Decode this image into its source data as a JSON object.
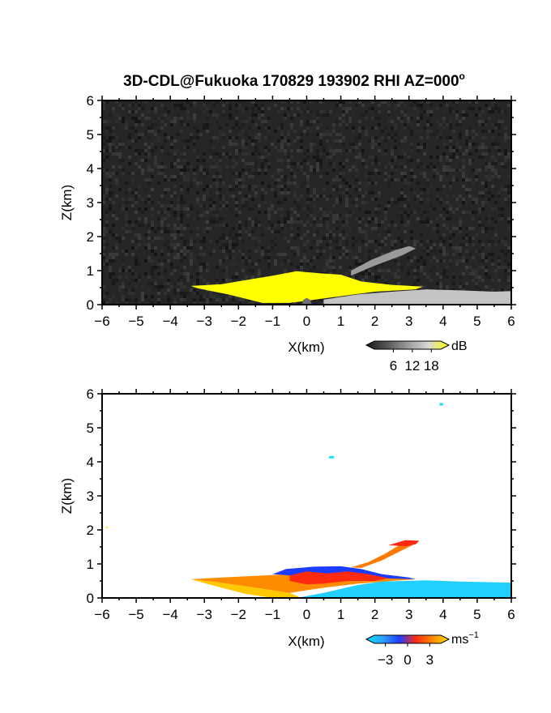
{
  "figure": {
    "title": "3D-CDL@Fukuoka 170829 193902 RHI AZ=000",
    "title_superscript": "o"
  },
  "chart_data": [
    {
      "type": "heatmap",
      "variable": "reflectivity",
      "xlabel": "X(km)",
      "ylabel": "Z(km)",
      "xlim": [
        -6,
        6
      ],
      "ylim": [
        0,
        6
      ],
      "xticks": [
        -6,
        -5,
        -4,
        -3,
        -2,
        -1,
        0,
        1,
        2,
        3,
        4,
        5,
        6
      ],
      "yticks": [
        0,
        1,
        2,
        3,
        4,
        5,
        6
      ],
      "background_color": "#262626",
      "colorbar": {
        "unit": "dB",
        "ticks": [
          6,
          12,
          18
        ],
        "range": [
          0,
          21
        ],
        "colors": [
          "#1a1a1a",
          "#555555",
          "#9a9a9a",
          "#d8d8d8",
          "#ffff00"
        ]
      },
      "regions": [
        {
          "label": "echo",
          "color": "#ffff00",
          "polygon": [
            [
              -3.4,
              0.55
            ],
            [
              -2.5,
              0.6
            ],
            [
              -1.8,
              0.72
            ],
            [
              -1.0,
              0.85
            ],
            [
              -0.3,
              0.98
            ],
            [
              0.4,
              0.92
            ],
            [
              1.0,
              0.88
            ],
            [
              1.6,
              0.68
            ],
            [
              2.5,
              0.58
            ],
            [
              3.4,
              0.53
            ],
            [
              3.2,
              0.45
            ],
            [
              2.0,
              0.38
            ],
            [
              0.5,
              0.18
            ],
            [
              -0.5,
              0.05
            ],
            [
              -1.3,
              0.05
            ],
            [
              -2.3,
              0.3
            ],
            [
              -3.2,
              0.48
            ]
          ]
        },
        {
          "label": "clutter",
          "color": "#c4c4c4",
          "polygon": [
            [
              0.5,
              0.15
            ],
            [
              1.5,
              0.3
            ],
            [
              2.5,
              0.38
            ],
            [
              3.5,
              0.45
            ],
            [
              4.5,
              0.42
            ],
            [
              5.5,
              0.38
            ],
            [
              6.0,
              0.4
            ],
            [
              6.0,
              0.0
            ],
            [
              0.5,
              0.0
            ]
          ]
        },
        {
          "label": "plume",
          "color": "#9a9a9a",
          "polygon": [
            [
              1.3,
              0.85
            ],
            [
              2.0,
              1.15
            ],
            [
              2.8,
              1.45
            ],
            [
              3.2,
              1.65
            ],
            [
              3.0,
              1.72
            ],
            [
              2.6,
              1.6
            ],
            [
              1.9,
              1.32
            ],
            [
              1.3,
              1.0
            ]
          ]
        },
        {
          "label": "mound",
          "color": "#707070",
          "polygon": [
            [
              -0.15,
              0.0
            ],
            [
              -0.1,
              0.14
            ],
            [
              0.0,
              0.2
            ],
            [
              0.1,
              0.14
            ],
            [
              0.15,
              0.0
            ]
          ]
        }
      ]
    },
    {
      "type": "heatmap",
      "variable": "doppler velocity",
      "xlabel": "X(km)",
      "ylabel": "Z(km)",
      "xlim": [
        -6,
        6
      ],
      "ylim": [
        0,
        6
      ],
      "xticks": [
        -6,
        -5,
        -4,
        -3,
        -2,
        -1,
        0,
        1,
        2,
        3,
        4,
        5,
        6
      ],
      "yticks": [
        0,
        1,
        2,
        3,
        4,
        5,
        6
      ],
      "background_color": "#ffffff",
      "colorbar": {
        "unit": "ms",
        "unit_superscript": "−1",
        "ticks": [
          "−3",
          "0",
          "3"
        ],
        "range": [
          -4.5,
          4.5
        ],
        "colors": [
          "#00e5ff",
          "#2e9fff",
          "#1c3cff",
          "#ff2a10",
          "#ff8800",
          "#ffe000"
        ]
      },
      "regions": [
        {
          "label": "cyan-ground",
          "color": "#22d0ff",
          "polygon": [
            [
              -0.2,
              0.02
            ],
            [
              0.5,
              0.15
            ],
            [
              1.5,
              0.38
            ],
            [
              2.2,
              0.48
            ],
            [
              3.5,
              0.52
            ],
            [
              4.5,
              0.48
            ],
            [
              6.0,
              0.45
            ],
            [
              6.0,
              0.0
            ],
            [
              -0.2,
              0.0
            ]
          ]
        },
        {
          "label": "yellow-left",
          "color": "#ffc800",
          "polygon": [
            [
              -3.4,
              0.55
            ],
            [
              -2.5,
              0.45
            ],
            [
              -1.5,
              0.3
            ],
            [
              -0.5,
              0.15
            ],
            [
              -0.2,
              0.02
            ],
            [
              -1.0,
              0.0
            ],
            [
              -1.8,
              0.12
            ],
            [
              -2.8,
              0.38
            ]
          ]
        },
        {
          "label": "orange-band",
          "color": "#ff8c00",
          "polygon": [
            [
              -3.4,
              0.55
            ],
            [
              -2.5,
              0.6
            ],
            [
              -1.5,
              0.65
            ],
            [
              -0.5,
              0.7
            ],
            [
              0.5,
              0.72
            ],
            [
              1.5,
              0.7
            ],
            [
              2.5,
              0.6
            ],
            [
              3.2,
              0.55
            ],
            [
              2.5,
              0.5
            ],
            [
              1.5,
              0.42
            ],
            [
              0.5,
              0.3
            ],
            [
              -0.5,
              0.15
            ],
            [
              -1.5,
              0.3
            ],
            [
              -2.5,
              0.45
            ]
          ]
        },
        {
          "label": "blue-top",
          "color": "#1c3cff",
          "polygon": [
            [
              -1.0,
              0.7
            ],
            [
              -0.6,
              0.85
            ],
            [
              0.2,
              0.92
            ],
            [
              1.0,
              0.93
            ],
            [
              1.6,
              0.85
            ],
            [
              2.2,
              0.7
            ],
            [
              3.0,
              0.6
            ],
            [
              3.2,
              0.55
            ],
            [
              2.0,
              0.58
            ],
            [
              0.5,
              0.68
            ],
            [
              -0.5,
              0.66
            ]
          ]
        },
        {
          "label": "red-core",
          "color": "#ff2a10",
          "polygon": [
            [
              -0.5,
              0.66
            ],
            [
              0.0,
              0.78
            ],
            [
              0.6,
              0.72
            ],
            [
              1.2,
              0.78
            ],
            [
              1.8,
              0.7
            ],
            [
              2.4,
              0.58
            ],
            [
              2.0,
              0.5
            ],
            [
              1.2,
              0.5
            ],
            [
              0.5,
              0.42
            ],
            [
              0.0,
              0.4
            ],
            [
              -0.5,
              0.5
            ]
          ]
        },
        {
          "label": "plume-orange",
          "color": "#ff7a00",
          "polygon": [
            [
              1.3,
              0.9
            ],
            [
              1.8,
              1.05
            ],
            [
              2.3,
              1.3
            ],
            [
              2.8,
              1.6
            ],
            [
              3.3,
              1.68
            ],
            [
              3.1,
              1.55
            ],
            [
              2.7,
              1.35
            ],
            [
              2.2,
              1.1
            ],
            [
              1.6,
              0.88
            ]
          ]
        },
        {
          "label": "plume-red",
          "color": "#ff2a10",
          "polygon": [
            [
              2.4,
              1.55
            ],
            [
              2.9,
              1.7
            ],
            [
              3.3,
              1.68
            ],
            [
              3.2,
              1.58
            ],
            [
              2.9,
              1.52
            ]
          ]
        },
        {
          "label": "speck-a",
          "color": "#22e0ff",
          "polygon": [
            [
              3.9,
              5.65
            ],
            [
              4.0,
              5.65
            ],
            [
              4.0,
              5.73
            ],
            [
              3.9,
              5.73
            ]
          ]
        },
        {
          "label": "speck-b",
          "color": "#22e0ff",
          "polygon": [
            [
              0.65,
              4.1
            ],
            [
              0.8,
              4.1
            ],
            [
              0.8,
              4.17
            ],
            [
              0.65,
              4.17
            ]
          ]
        },
        {
          "label": "speck-c",
          "color": "#ffe000",
          "polygon": [
            [
              -5.88,
              2.05
            ],
            [
              -5.83,
              2.05
            ],
            [
              -5.83,
              2.1
            ],
            [
              -5.88,
              2.1
            ]
          ]
        }
      ]
    }
  ]
}
